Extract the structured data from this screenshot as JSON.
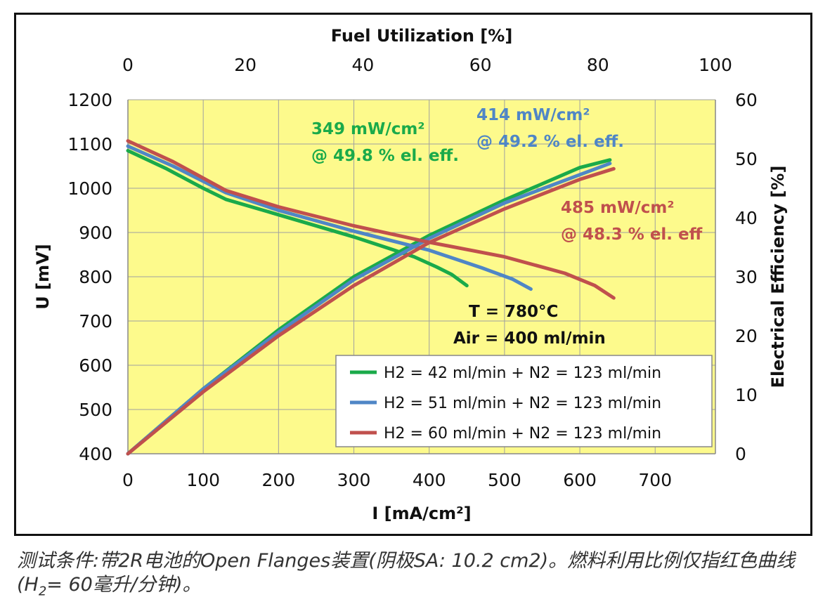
{
  "chart_data": {
    "type": "line",
    "top_axis_label": "Fuel Utilization [%]",
    "top_ticks": [
      "0",
      "20",
      "40",
      "60",
      "80",
      "100"
    ],
    "top_range": [
      0,
      100
    ],
    "xlabel": "I [mA/cm²]",
    "x_ticks": [
      "0",
      "100",
      "200",
      "300",
      "400",
      "500",
      "600",
      "700"
    ],
    "xlim": [
      0,
      780
    ],
    "ylabel": "U [mV]",
    "y_ticks": [
      "400",
      "500",
      "600",
      "700",
      "800",
      "900",
      "1000",
      "1100",
      "1200"
    ],
    "ylim": [
      400,
      1200
    ],
    "y2label": "Electrical Efficiency [%]",
    "y2_ticks": [
      "0",
      "10",
      "20",
      "30",
      "40",
      "50",
      "60"
    ],
    "y2lim": [
      0,
      60
    ],
    "grid": true,
    "background": "#fdfa8c",
    "legend_position": "bottom-right",
    "conditions": [
      "T = 780°C",
      "Air = 400 ml/min"
    ],
    "series": [
      {
        "name": "H2 = 42 ml/min + N2 = 123 ml/min",
        "color": "#1aaa4a",
        "voltage": [
          [
            0,
            1085
          ],
          [
            50,
            1045
          ],
          [
            100,
            1000
          ],
          [
            130,
            975
          ],
          [
            200,
            940
          ],
          [
            300,
            890
          ],
          [
            350,
            862
          ],
          [
            380,
            845
          ],
          [
            410,
            822
          ],
          [
            430,
            805
          ],
          [
            450,
            780
          ]
        ],
        "efficiency": [
          [
            0,
            0
          ],
          [
            100,
            11
          ],
          [
            200,
            21
          ],
          [
            300,
            30
          ],
          [
            400,
            37
          ],
          [
            500,
            43
          ],
          [
            600,
            48.5
          ],
          [
            640,
            49.8
          ]
        ],
        "annotation": [
          "349 mW/cm²",
          "@ 49.8 % el. eff."
        ]
      },
      {
        "name": "H2 = 51 ml/min + N2 = 123 ml/min",
        "color": "#4f86c6",
        "voltage": [
          [
            0,
            1095
          ],
          [
            60,
            1050
          ],
          [
            130,
            990
          ],
          [
            200,
            950
          ],
          [
            300,
            903
          ],
          [
            400,
            860
          ],
          [
            470,
            820
          ],
          [
            510,
            795
          ],
          [
            535,
            772
          ]
        ],
        "efficiency": [
          [
            0,
            0
          ],
          [
            100,
            11
          ],
          [
            200,
            20.6
          ],
          [
            300,
            29.5
          ],
          [
            400,
            36.5
          ],
          [
            500,
            42.5
          ],
          [
            600,
            47.3
          ],
          [
            640,
            49.2
          ]
        ],
        "annotation": [
          "414 mW/cm²",
          "@ 49.2 % el. eff."
        ]
      },
      {
        "name": "H2 = 60 ml/min + N2 = 123 ml/min",
        "color": "#c0504d",
        "voltage": [
          [
            0,
            1107
          ],
          [
            60,
            1060
          ],
          [
            130,
            995
          ],
          [
            200,
            958
          ],
          [
            300,
            915
          ],
          [
            400,
            878
          ],
          [
            500,
            845
          ],
          [
            580,
            808
          ],
          [
            620,
            780
          ],
          [
            645,
            752
          ]
        ],
        "efficiency": [
          [
            0,
            0
          ],
          [
            100,
            10.5
          ],
          [
            200,
            20
          ],
          [
            300,
            28.5
          ],
          [
            400,
            35.8
          ],
          [
            500,
            41.5
          ],
          [
            600,
            46.5
          ],
          [
            645,
            48.3
          ]
        ],
        "annotation": [
          "485 mW/cm²",
          "@ 48.3 % el. eff"
        ]
      }
    ]
  },
  "caption": {
    "part1": "测试条件:带2R电池的Open Flanges装置(阴极SA: 10.2 cm2)。燃料利用比例仅指红色曲线(H",
    "sub": "2",
    "part2": "= 60毫升/分钟)。"
  }
}
